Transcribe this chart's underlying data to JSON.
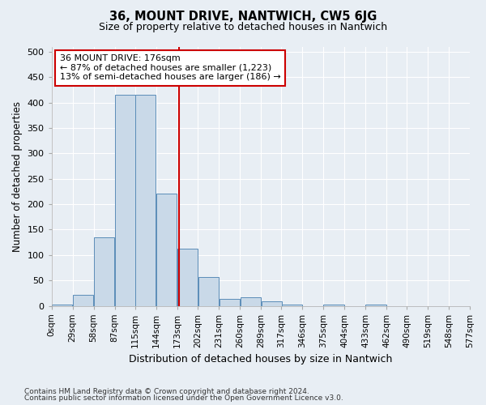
{
  "title": "36, MOUNT DRIVE, NANTWICH, CW5 6JG",
  "subtitle": "Size of property relative to detached houses in Nantwich",
  "xlabel": "Distribution of detached houses by size in Nantwich",
  "ylabel": "Number of detached properties",
  "footer1": "Contains HM Land Registry data © Crown copyright and database right 2024.",
  "footer2": "Contains public sector information licensed under the Open Government Licence v3.0.",
  "property_size": 176,
  "annotation_title": "36 MOUNT DRIVE: 176sqm",
  "annotation_line1": "← 87% of detached houses are smaller (1,223)",
  "annotation_line2": "13% of semi-detached houses are larger (186) →",
  "bin_edges": [
    0,
    29,
    58,
    87,
    115,
    144,
    173,
    202,
    231,
    260,
    289,
    317,
    346,
    375,
    404,
    433,
    462,
    490,
    519,
    548,
    577
  ],
  "bar_heights": [
    2,
    22,
    135,
    415,
    415,
    220,
    112,
    57,
    14,
    16,
    8,
    2,
    0,
    2,
    0,
    2,
    0,
    0,
    0,
    0
  ],
  "bar_color": "#c9d9e8",
  "bar_edge_color": "#5b8db8",
  "vline_color": "#cc0000",
  "vline_x": 176,
  "ylim": [
    0,
    510
  ],
  "yticks": [
    0,
    50,
    100,
    150,
    200,
    250,
    300,
    350,
    400,
    450,
    500
  ],
  "bg_color": "#e8eef4",
  "grid_color": "#ffffff",
  "annotation_box_color": "#ffffff",
  "annotation_box_edge": "#cc0000"
}
